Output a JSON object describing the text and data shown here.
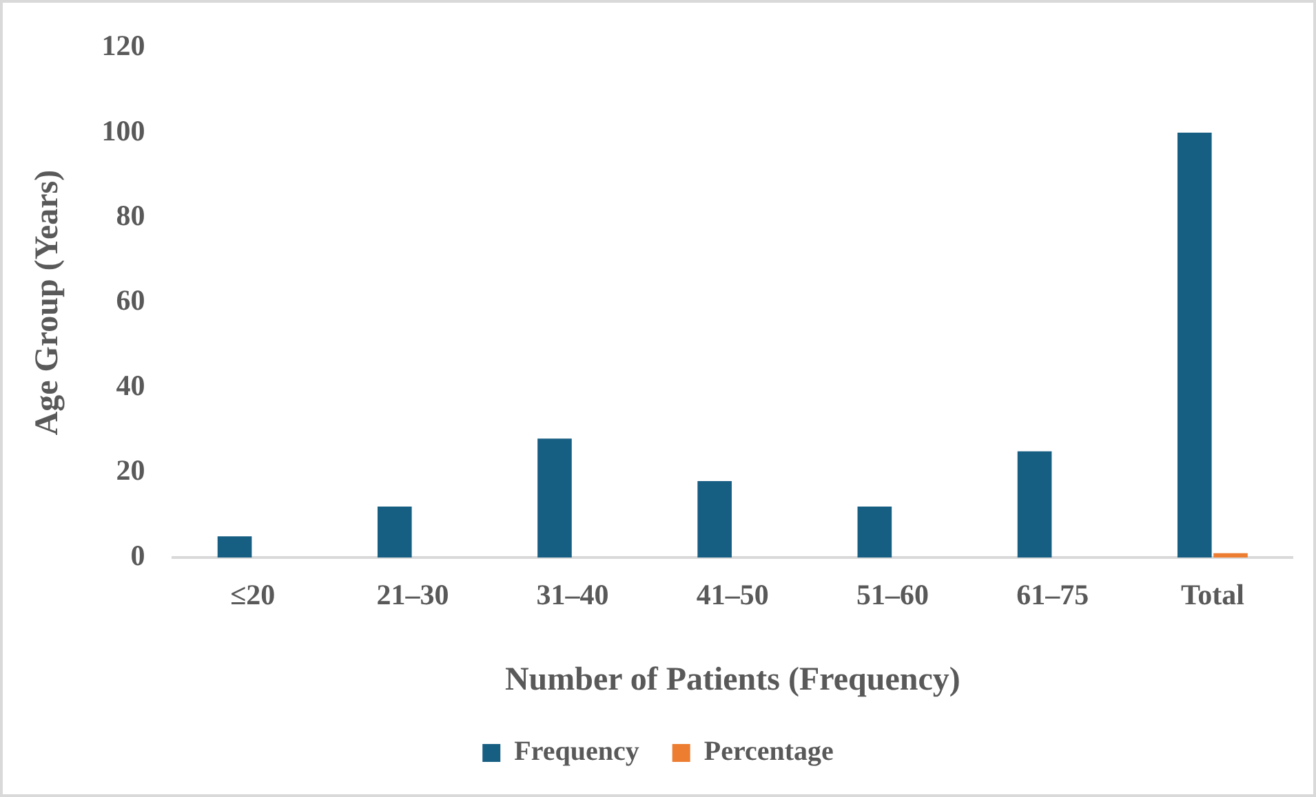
{
  "chart_data": {
    "type": "bar",
    "xlabel": "Number of Patients (Frequency)",
    "ylabel": "Age Group (Years)",
    "categories": [
      "≤20",
      "21–30",
      "31–40",
      "41–50",
      "51–60",
      "61–75",
      "Total"
    ],
    "series": [
      {
        "name": "Frequency",
        "color": "#175e83",
        "values": [
          5,
          12,
          28,
          18,
          12,
          25,
          100
        ]
      },
      {
        "name": "Percentage",
        "color": "#ed7d31",
        "values": [
          0,
          0,
          0,
          0,
          0,
          0,
          1
        ]
      }
    ],
    "ylim": [
      0,
      120
    ],
    "yticks": [
      0,
      20,
      40,
      60,
      80,
      100,
      120
    ],
    "grid": false,
    "legend": "bottom"
  }
}
